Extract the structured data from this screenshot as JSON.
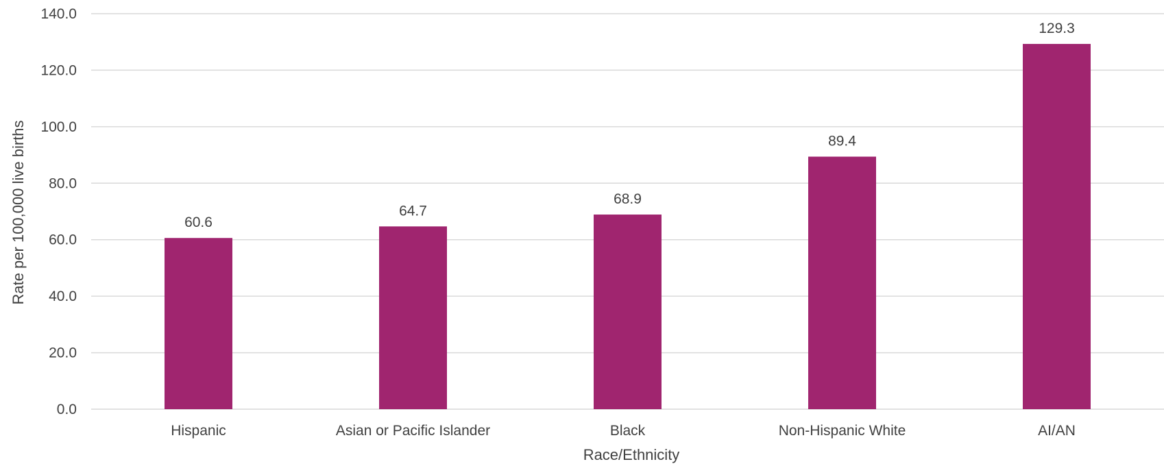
{
  "chart_data": {
    "type": "bar",
    "title": "",
    "xlabel": "Race/Ethnicity",
    "ylabel": "Rate per 100,000 live births",
    "categories": [
      "Hispanic",
      "Asian or Pacific Islander",
      "Black",
      "Non-Hispanic White",
      "AI/AN"
    ],
    "values": [
      60.6,
      64.7,
      68.9,
      89.4,
      129.3
    ],
    "data_labels": [
      "60.6",
      "64.7",
      "68.9",
      "89.4",
      "129.3"
    ],
    "ylim": [
      0,
      140
    ],
    "yticks": [
      0,
      20,
      40,
      60,
      80,
      100,
      120,
      140
    ],
    "ytick_labels": [
      "0.0",
      "20.0",
      "40.0",
      "60.0",
      "80.0",
      "100.0",
      "120.0",
      "140.0"
    ],
    "grid": true,
    "legend": "none",
    "bar_color": "#A0256F"
  }
}
